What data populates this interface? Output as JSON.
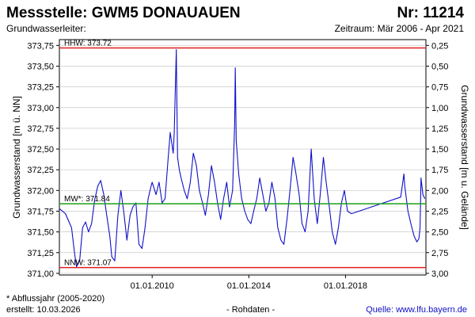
{
  "header": {
    "title": "Messstelle: GWM5 DONAUAUEN",
    "number": "Nr: 11214",
    "aquifer_label": "Grundwasserleiter:",
    "period": "Zeitraum: Mär 2006 - Apr 2021"
  },
  "footer": {
    "note": "* Abflussjahr (2005-2020)",
    "created": "erstellt:  10.03.2026",
    "raw": "- Rohdaten -",
    "source": "Quelle: www.lfu.bayern.de"
  },
  "colors": {
    "line": "#1010c8",
    "extreme": "#e02020",
    "mean": "#18a018",
    "grid": "#c8c8c8"
  },
  "chart_data": {
    "type": "line",
    "ylabel": "Grundwasserstand [m ü. NN]",
    "ylabel_right": "Grundwasserstand [m u. Gelände]",
    "ylim": [
      370.98,
      373.82
    ],
    "y_ticks": [
      "371,00",
      "371,25",
      "371,50",
      "371,75",
      "372,00",
      "372,25",
      "372,50",
      "372,75",
      "373,00",
      "373,25",
      "373,50",
      "373,75"
    ],
    "y_ticks_right": [
      "0,25",
      "0,50",
      "0,75",
      "1,00",
      "1,25",
      "1,50",
      "1,75",
      "2,00",
      "2,25",
      "2,50",
      "2,75",
      "3,00"
    ],
    "x_ticks": [
      "01.01.2010",
      "01.01.2014",
      "01.01.2018"
    ],
    "x_range": [
      "2006-03-01",
      "2021-04-30"
    ],
    "reference_lines": [
      {
        "label": "HHW: 373.72",
        "value": 373.72
      },
      {
        "label": "MW*: 371.84",
        "value": 371.84
      },
      {
        "label": "NNW: 371.07",
        "value": 371.07
      }
    ],
    "series": [
      {
        "x": [
          "2006-03-01",
          "2006-06-01",
          "2006-09-01",
          "2006-10-15",
          "2006-11-15",
          "2007-01-01",
          "2007-02-15",
          "2007-04-01",
          "2007-05-15",
          "2007-07-01",
          "2007-08-15",
          "2007-10-01",
          "2007-11-15",
          "2008-01-01",
          "2008-02-15",
          "2008-04-01",
          "2008-05-01",
          "2008-06-15",
          "2008-08-01",
          "2008-09-15",
          "2008-11-01",
          "2008-12-15",
          "2009-02-01",
          "2009-03-15",
          "2009-05-01",
          "2009-06-15",
          "2009-08-01",
          "2009-09-15",
          "2009-11-01",
          "2009-12-15",
          "2010-01-01",
          "2010-03-01",
          "2010-04-15",
          "2010-06-01",
          "2010-07-15",
          "2010-09-01",
          "2010-10-01",
          "2010-11-15",
          "2010-12-01",
          "2011-01-01",
          "2011-01-10",
          "2011-01-20",
          "2011-02-15",
          "2011-03-15",
          "2011-05-01",
          "2011-06-15",
          "2011-08-01",
          "2011-09-15",
          "2011-11-01",
          "2011-12-15",
          "2012-02-01",
          "2012-03-15",
          "2012-05-01",
          "2012-06-15",
          "2012-08-01",
          "2012-09-15",
          "2012-11-01",
          "2012-12-15",
          "2013-02-01",
          "2013-03-15",
          "2013-05-01",
          "2013-06-01",
          "2013-06-10",
          "2013-06-25",
          "2013-08-01",
          "2013-09-15",
          "2013-11-01",
          "2013-12-15",
          "2014-02-01",
          "2014-03-15",
          "2014-05-01",
          "2014-06-15",
          "2014-08-01",
          "2014-09-15",
          "2014-11-01",
          "2014-12-15",
          "2015-02-01",
          "2015-03-15",
          "2015-05-01",
          "2015-06-15",
          "2015-08-01",
          "2015-09-15",
          "2015-11-01",
          "2015-12-15",
          "2016-02-01",
          "2016-03-15",
          "2016-05-01",
          "2016-06-15",
          "2016-08-01",
          "2016-09-15",
          "2016-11-01",
          "2016-12-15",
          "2017-02-01",
          "2017-03-15",
          "2017-05-01",
          "2017-06-15",
          "2017-08-01",
          "2017-09-15",
          "2017-11-01",
          "2017-12-15",
          "2018-02-01",
          "2018-04-01",
          "2020-04-15",
          "2020-06-01",
          "2020-06-15",
          "2020-08-01",
          "2020-09-15",
          "2020-11-01",
          "2020-12-15",
          "2021-01-15",
          "2021-02-01",
          "2021-02-15",
          "2021-03-15",
          "2021-04-15"
        ],
        "values": [
          371.78,
          371.72,
          371.55,
          371.25,
          371.08,
          371.15,
          371.55,
          371.62,
          371.5,
          371.6,
          371.88,
          372.05,
          372.12,
          371.95,
          371.7,
          371.45,
          371.2,
          371.15,
          371.7,
          372.0,
          371.72,
          371.4,
          371.7,
          371.8,
          371.85,
          371.35,
          371.3,
          371.55,
          371.9,
          372.05,
          372.1,
          371.95,
          372.1,
          371.85,
          371.9,
          372.4,
          372.7,
          372.45,
          372.7,
          373.7,
          373.0,
          372.4,
          372.25,
          372.15,
          372.0,
          371.9,
          372.1,
          372.45,
          372.3,
          372.0,
          371.85,
          371.7,
          371.95,
          372.3,
          372.1,
          371.85,
          371.65,
          371.9,
          372.1,
          371.8,
          372.0,
          372.8,
          373.48,
          372.6,
          372.2,
          371.9,
          371.75,
          371.65,
          371.6,
          371.75,
          371.9,
          372.15,
          371.95,
          371.75,
          371.85,
          372.1,
          371.9,
          371.55,
          371.4,
          371.35,
          371.65,
          372.0,
          372.4,
          372.2,
          371.95,
          371.6,
          371.5,
          371.75,
          372.5,
          371.9,
          371.6,
          371.95,
          372.4,
          372.1,
          371.8,
          371.5,
          371.35,
          371.55,
          371.85,
          372.0,
          371.75,
          371.72,
          371.92,
          372.2,
          372.05,
          371.75,
          371.6,
          371.45,
          371.38,
          371.42,
          371.55,
          372.15,
          371.95,
          371.9
        ]
      }
    ]
  }
}
